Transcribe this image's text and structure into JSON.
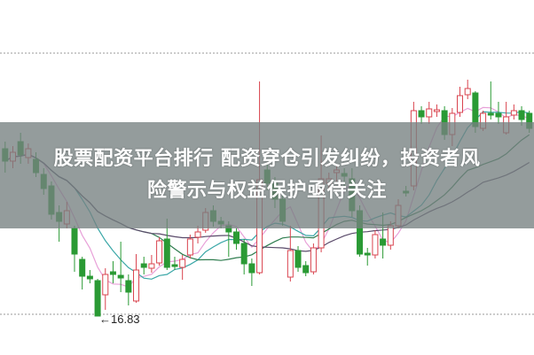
{
  "headline": {
    "line1": "股票配资平台排行 配资穿仓引发纠纷，投资者风",
    "line2": "险警示与权益保护亟待关注"
  },
  "chart_data": {
    "type": "candlestick",
    "ylim": [
      16.39,
      20.4
    ],
    "grid": "horizontal dotted",
    "gridlines": [
      19.8,
      16.85
    ],
    "annotations": [
      {
        "text": "←16.83",
        "value": 16.83
      }
    ],
    "colors": {
      "up": "#d9434e",
      "down": "#2a9a34",
      "ma": [
        "#e8a0d8",
        "#3aa7a7",
        "#2f7d4f",
        "#5a4a6a"
      ]
    },
    "candles": [
      [
        18.72,
        18.58,
        18.8,
        18.45
      ],
      [
        18.58,
        18.68,
        18.75,
        18.5
      ],
      [
        18.8,
        18.65,
        18.9,
        18.55
      ],
      [
        18.62,
        18.72,
        18.78,
        18.55
      ],
      [
        18.6,
        18.45,
        18.68,
        18.4
      ],
      [
        18.43,
        18.27,
        18.5,
        18.2
      ],
      [
        18.3,
        17.98,
        18.35,
        17.92
      ],
      [
        18.0,
        17.9,
        18.08,
        17.67
      ],
      [
        17.87,
        18.02,
        18.12,
        17.82
      ],
      [
        17.82,
        17.53,
        17.85,
        17.33
      ],
      [
        17.47,
        17.28,
        17.5,
        17.13
      ],
      [
        17.28,
        17.25,
        17.35,
        17.2
      ],
      [
        17.23,
        16.83,
        17.25,
        16.83
      ],
      [
        17.07,
        17.3,
        17.37,
        16.9
      ],
      [
        17.33,
        17.3,
        17.45,
        17.2
      ],
      [
        17.29,
        17.26,
        17.67,
        17.1
      ],
      [
        17.23,
        17.1,
        17.3,
        16.95
      ],
      [
        17.0,
        17.35,
        17.53,
        16.98
      ],
      [
        17.42,
        17.38,
        17.5,
        17.3
      ],
      [
        17.37,
        17.42,
        17.52,
        17.32
      ],
      [
        17.43,
        17.68,
        17.72,
        17.4
      ],
      [
        17.7,
        17.38,
        17.93,
        17.35
      ],
      [
        17.41,
        17.39,
        17.5,
        17.35
      ],
      [
        17.38,
        17.47,
        17.52,
        17.24
      ],
      [
        17.52,
        17.7,
        17.75,
        17.48
      ],
      [
        17.72,
        17.78,
        17.85,
        17.65
      ],
      [
        17.8,
        18.0,
        18.05,
        17.77
      ],
      [
        18.02,
        17.9,
        18.08,
        17.84
      ],
      [
        17.9,
        17.87,
        17.95,
        17.82
      ],
      [
        17.85,
        17.78,
        17.9,
        17.5
      ],
      [
        17.78,
        17.65,
        17.82,
        17.58
      ],
      [
        17.65,
        17.42,
        17.7,
        17.3
      ],
      [
        17.42,
        17.32,
        17.48,
        17.17
      ],
      [
        17.32,
        18.37,
        19.48,
        17.3
      ],
      [
        18.48,
        18.33,
        18.55,
        18.25
      ],
      [
        18.33,
        18.15,
        18.4,
        18.05
      ],
      [
        18.15,
        17.9,
        18.2,
        17.85
      ],
      [
        17.27,
        17.57,
        17.85,
        17.22
      ],
      [
        17.57,
        17.38,
        17.62,
        17.33
      ],
      [
        17.4,
        17.32,
        17.45,
        17.28
      ],
      [
        17.33,
        17.6,
        17.65,
        17.3
      ],
      [
        17.6,
        18.38,
        18.87,
        17.55
      ],
      [
        18.33,
        18.38,
        18.45,
        18.25
      ],
      [
        18.45,
        18.48,
        18.55,
        18.35
      ],
      [
        18.44,
        18.41,
        18.5,
        18.3
      ],
      [
        18.38,
        18.02,
        18.5,
        17.95
      ],
      [
        18.02,
        17.53,
        18.08,
        17.5
      ],
      [
        17.54,
        17.52,
        17.6,
        17.4
      ],
      [
        17.52,
        17.75,
        17.8,
        17.48
      ],
      [
        17.7,
        17.63,
        18.0,
        17.48
      ],
      [
        17.63,
        17.85,
        17.9,
        17.58
      ],
      [
        17.85,
        18.08,
        18.15,
        17.82
      ],
      [
        18.24,
        18.22,
        18.3,
        18.18
      ],
      [
        18.3,
        19.15,
        19.25,
        18.25
      ],
      [
        19.15,
        19.08,
        19.2,
        19.0
      ],
      [
        19.08,
        19.17,
        19.25,
        19.0
      ],
      [
        19.14,
        19.16,
        19.22,
        19.08
      ],
      [
        19.15,
        18.88,
        19.2,
        18.82
      ],
      [
        18.88,
        19.12,
        19.18,
        18.75
      ],
      [
        19.13,
        19.32,
        19.42,
        19.08
      ],
      [
        19.33,
        19.4,
        19.5,
        19.28
      ],
      [
        19.35,
        18.97,
        19.37,
        18.9
      ],
      [
        18.95,
        19.12,
        19.15,
        18.92
      ],
      [
        19.12,
        19.1,
        19.48,
        19.05
      ],
      [
        19.12,
        19.08,
        19.25,
        19.0
      ],
      [
        18.9,
        19.08,
        19.25,
        18.88
      ],
      [
        19.1,
        19.15,
        19.22,
        19.05
      ],
      [
        19.15,
        19.05,
        19.2,
        18.98
      ],
      [
        19.12,
        18.95,
        19.15,
        18.9
      ]
    ]
  }
}
